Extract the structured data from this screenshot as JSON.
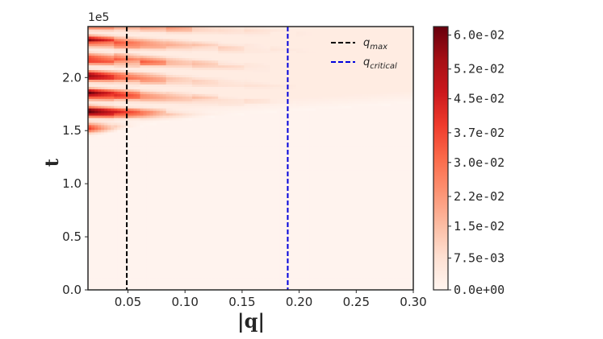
{
  "chart_data": {
    "type": "heatmap",
    "title": "",
    "xlabel": "|q|",
    "ylabel": "t",
    "y_offset_label": "1e5",
    "xlim": [
      0.015,
      0.3
    ],
    "ylim": [
      0.0,
      2.48
    ],
    "x_ticks": [
      "0.05",
      "0.10",
      "0.15",
      "0.20",
      "0.25",
      "0.30"
    ],
    "x_tick_values": [
      0.05,
      0.1,
      0.15,
      0.2,
      0.25,
      0.3
    ],
    "y_ticks": [
      "0.0",
      "0.5",
      "1.0",
      "1.5",
      "2.0"
    ],
    "y_tick_values": [
      0.0,
      0.5,
      1.0,
      1.5,
      2.0
    ],
    "grid": false,
    "colormap": "Reds",
    "colorbar": {
      "range": [
        0.0,
        0.062
      ],
      "tick_labels": [
        "6.0e-02",
        "5.2e-02",
        "4.5e-02",
        "3.7e-02",
        "3.0e-02",
        "2.2e-02",
        "1.5e-02",
        "7.5e-03",
        "0.0e+00"
      ],
      "tick_values": [
        0.06,
        0.052,
        0.045,
        0.037,
        0.03,
        0.022,
        0.015,
        0.0075,
        0.0
      ]
    },
    "vlines": [
      {
        "name": "q_max",
        "base": "q",
        "sub": "max",
        "x": 0.049,
        "color": "#000000",
        "style": "dashed"
      },
      {
        "name": "q_critical",
        "base": "q",
        "sub": "critical",
        "x": 0.19,
        "color": "#0000dd",
        "style": "dashed"
      }
    ],
    "legend_position": "top-right",
    "intensity_profile": {
      "t_onset": [
        1.42,
        1.52,
        1.58,
        1.63,
        1.68,
        1.72,
        1.76
      ],
      "q_at": [
        0.015,
        0.05,
        0.08,
        0.12,
        0.18,
        0.24,
        0.3
      ],
      "peak_value": 0.062,
      "peak_q": 0.02,
      "peak_t": 1.82
    }
  }
}
